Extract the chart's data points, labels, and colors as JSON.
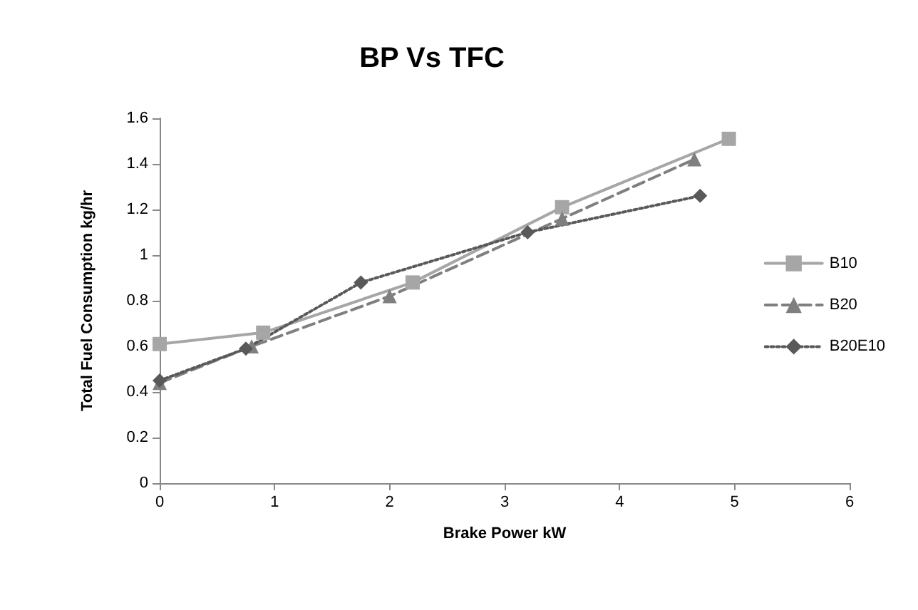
{
  "chart_data": {
    "type": "line",
    "title": "BP Vs TFC",
    "xlabel": "Brake Power kW",
    "ylabel": "Total Fuel Consumption kg/hr",
    "xlim": [
      0,
      6
    ],
    "xticks": [
      0,
      1,
      2,
      3,
      4,
      5,
      6
    ],
    "ylim": [
      0,
      1.6
    ],
    "yticks": [
      0,
      0.2,
      0.4,
      0.6,
      0.8,
      1,
      1.2,
      1.4,
      1.6
    ],
    "grid": false,
    "legend": "right",
    "series": [
      {
        "name": "B10",
        "color": "#a6a6a6",
        "marker": "square",
        "line_style": "solid",
        "x": [
          0,
          0.9,
          2.2,
          3.5,
          4.95
        ],
        "values": [
          0.61,
          0.66,
          0.88,
          1.21,
          1.51
        ]
      },
      {
        "name": "B20",
        "color": "#7f7f7f",
        "marker": "triangle",
        "line_style": "dashed",
        "x": [
          0,
          0.8,
          2,
          3.5,
          4.65
        ],
        "values": [
          0.44,
          0.6,
          0.82,
          1.16,
          1.42
        ]
      },
      {
        "name": "B20E10",
        "color": "#595959",
        "marker": "diamond",
        "line_style": "dotted",
        "x": [
          0,
          0.75,
          1.75,
          3.2,
          4.7
        ],
        "values": [
          0.45,
          0.59,
          0.88,
          1.1,
          1.26
        ]
      }
    ]
  }
}
